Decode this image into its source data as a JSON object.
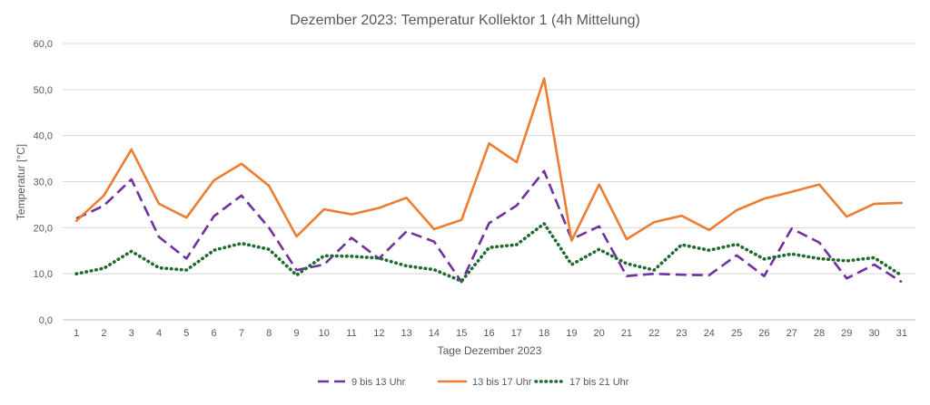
{
  "chart_data": {
    "type": "line",
    "title": "Dezember 2023: Temperatur Kollektor 1 (4h Mittelung)",
    "xlabel": "Tage Dezember 2023",
    "ylabel": "Temperatur [°C]",
    "ylim": [
      0,
      60
    ],
    "yticks": [
      "0,0",
      "10,0",
      "20,0",
      "30,0",
      "40,0",
      "50,0",
      "60,0"
    ],
    "grid": true,
    "legend_position": "bottom",
    "categories": [
      "1",
      "2",
      "3",
      "4",
      "5",
      "6",
      "7",
      "8",
      "9",
      "10",
      "11",
      "12",
      "13",
      "14",
      "15",
      "16",
      "17",
      "18",
      "19",
      "20",
      "21",
      "22",
      "23",
      "24",
      "25",
      "26",
      "27",
      "28",
      "29",
      "30",
      "31"
    ],
    "series": [
      {
        "name": "9 bis 13 Uhr",
        "color": "#7030a0",
        "style": "dashed",
        "values": [
          22.0,
          24.8,
          30.5,
          18.0,
          13.3,
          22.5,
          27.0,
          20.0,
          10.8,
          12.0,
          17.8,
          13.3,
          19.2,
          17.0,
          8.2,
          21.0,
          24.8,
          32.3,
          17.5,
          20.3,
          9.5,
          10.0,
          9.8,
          9.7,
          14.0,
          9.5,
          19.8,
          16.8,
          9.0,
          12.0,
          8.2
        ]
      },
      {
        "name": "13 bis 17 Uhr",
        "color": "#ed7d31",
        "style": "solid",
        "values": [
          21.5,
          27.0,
          37.0,
          25.2,
          22.2,
          30.3,
          33.9,
          29.1,
          18.1,
          24.0,
          22.9,
          24.3,
          26.5,
          19.7,
          21.7,
          38.3,
          34.2,
          52.4,
          17.2,
          29.4,
          17.5,
          21.2,
          22.6,
          19.5,
          23.8,
          26.3,
          27.8,
          29.4,
          22.4,
          25.2,
          25.4
        ]
      },
      {
        "name": "17 bis 21 Uhr",
        "color": "#1e6b2e",
        "style": "dotted",
        "values": [
          10.0,
          11.2,
          14.9,
          11.3,
          10.8,
          15.1,
          16.6,
          15.3,
          9.7,
          13.9,
          13.8,
          13.4,
          11.7,
          10.9,
          8.4,
          15.7,
          16.3,
          20.9,
          12.0,
          15.3,
          12.2,
          10.8,
          16.3,
          15.1,
          16.4,
          13.2,
          14.3,
          13.3,
          12.8,
          13.5,
          9.6
        ]
      }
    ]
  }
}
